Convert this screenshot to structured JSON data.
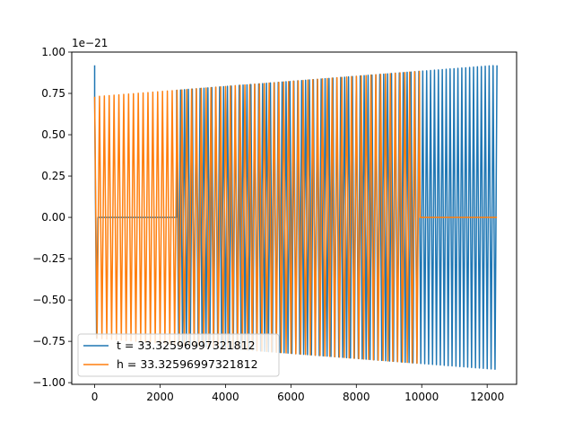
{
  "chart_data": {
    "type": "line",
    "title": "",
    "xlabel": "",
    "ylabel": "",
    "y_offset_text": "1e−21",
    "xlim": [
      -700,
      12900
    ],
    "ylim": [
      -1.01,
      1.0
    ],
    "x_ticks": [
      0,
      2000,
      4000,
      6000,
      8000,
      10000,
      12000
    ],
    "x_tick_labels": [
      "0",
      "2000",
      "4000",
      "6000",
      "8000",
      "10000",
      "12000"
    ],
    "y_ticks": [
      -1.0,
      -0.75,
      -0.5,
      -0.25,
      0.0,
      0.25,
      0.5,
      0.75,
      1.0
    ],
    "y_tick_labels": [
      "−1.00",
      "−0.75",
      "−0.50",
      "−0.25",
      "0.00",
      "0.25",
      "0.50",
      "0.75",
      "1.00"
    ],
    "grid": false,
    "legend_position": "lower-left",
    "series": [
      {
        "name": "t = 33.32596997321812",
        "color": "#1f77b4",
        "x_range": [
          0,
          12300
        ],
        "start_value": 0.92,
        "zero_segment": [
          100,
          2500
        ],
        "amplitude_start": 0.73,
        "amplitude_end": 0.92,
        "cycles": 103
      },
      {
        "name": "h = 33.32596997321812",
        "color": "#ff7f0e",
        "x_range": [
          0,
          12300
        ],
        "start_value": 0.73,
        "zero_segment": [
          9950,
          12300
        ],
        "amplitude_start": 0.73,
        "amplitude_end": 0.92,
        "cycles": 83
      }
    ]
  }
}
